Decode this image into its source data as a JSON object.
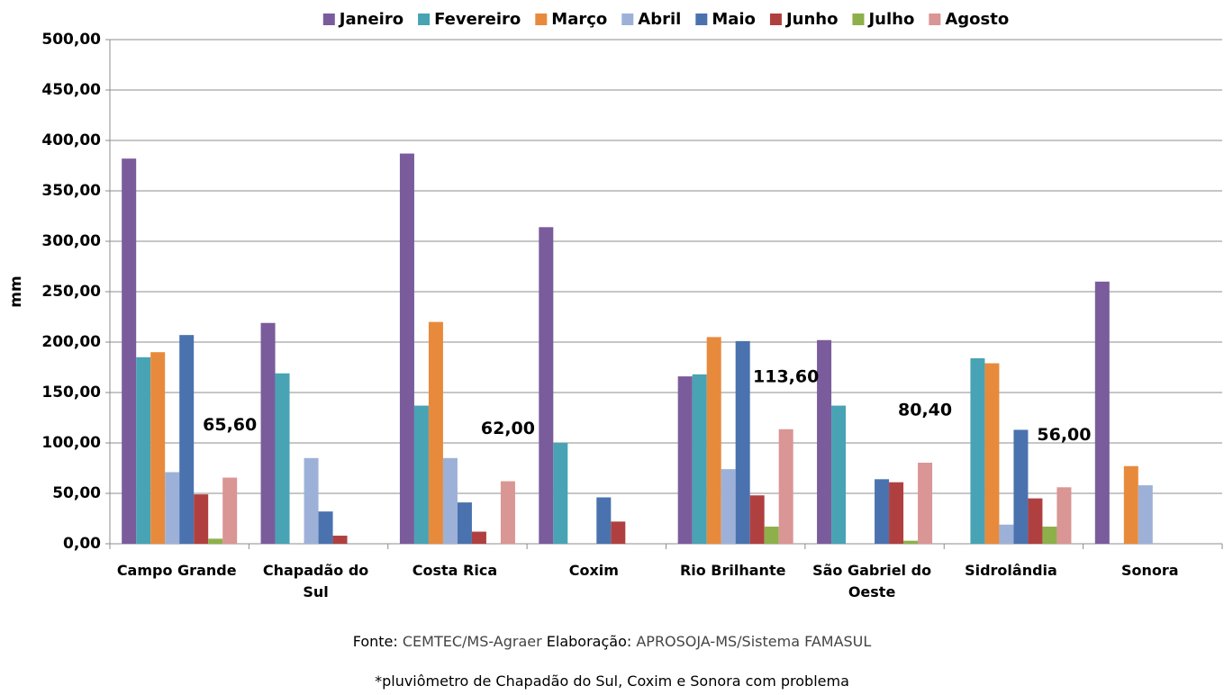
{
  "chart_data": {
    "type": "bar",
    "y_label": "mm",
    "categories": [
      "Campo Grande",
      "Chapadão do Sul",
      "Costa Rica",
      "Coxim",
      "Rio Brilhante",
      "São Gabriel do Oeste",
      "Sidrolândia",
      "Sonora"
    ],
    "series": [
      {
        "name": "Janeiro",
        "color": "#7a5c9c",
        "values": [
          382,
          219,
          387,
          314,
          166,
          202,
          null,
          260
        ]
      },
      {
        "name": "Fevereiro",
        "color": "#48a3b5",
        "values": [
          185,
          169,
          137,
          100,
          168,
          137,
          184,
          null
        ]
      },
      {
        "name": "Março",
        "color": "#e88a3c",
        "values": [
          190,
          null,
          220,
          null,
          205,
          null,
          179,
          77
        ]
      },
      {
        "name": "Abril",
        "color": "#9db1d8",
        "values": [
          71,
          85,
          85,
          null,
          74,
          null,
          19,
          58
        ]
      },
      {
        "name": "Maio",
        "color": "#4a72ae",
        "values": [
          207,
          32,
          41,
          46,
          201,
          64,
          113,
          null
        ]
      },
      {
        "name": "Junho",
        "color": "#b0403f",
        "values": [
          49,
          8,
          12,
          22,
          48,
          61,
          45,
          null
        ]
      },
      {
        "name": "Julho",
        "color": "#8db04a",
        "values": [
          5,
          null,
          null,
          null,
          17,
          3,
          17,
          null
        ]
      },
      {
        "name": "Agosto",
        "color": "#d99694",
        "values": [
          65.6,
          null,
          62,
          null,
          113.6,
          80.4,
          56,
          null
        ],
        "value_labels": [
          "65,60",
          null,
          "62,00",
          null,
          "113,60",
          "80,40",
          "56,00",
          null
        ]
      }
    ],
    "ylim": [
      0,
      500
    ],
    "yticks": [
      {
        "value": 0,
        "label": "0,00"
      },
      {
        "value": 50,
        "label": "50,00"
      },
      {
        "value": 100,
        "label": "100,00"
      },
      {
        "value": 150,
        "label": "150,00"
      },
      {
        "value": 200,
        "label": "200,00"
      },
      {
        "value": 250,
        "label": "250,00"
      },
      {
        "value": 300,
        "label": "300,00"
      },
      {
        "value": 350,
        "label": "350,00"
      },
      {
        "value": 400,
        "label": "400,00"
      },
      {
        "value": 450,
        "label": "450,00"
      },
      {
        "value": 500,
        "label": "500,00"
      }
    ],
    "grid": true,
    "legend": "top",
    "source_label": "Fonte:",
    "source": "CEMTEC/MS-Agraer",
    "credit_label": "Elaboração:",
    "credit": "APROSOJA-MS/Sistema FAMASUL",
    "note": "*pluviômetro de Chapadão do Sul, Coxim e Sonora com problema"
  }
}
